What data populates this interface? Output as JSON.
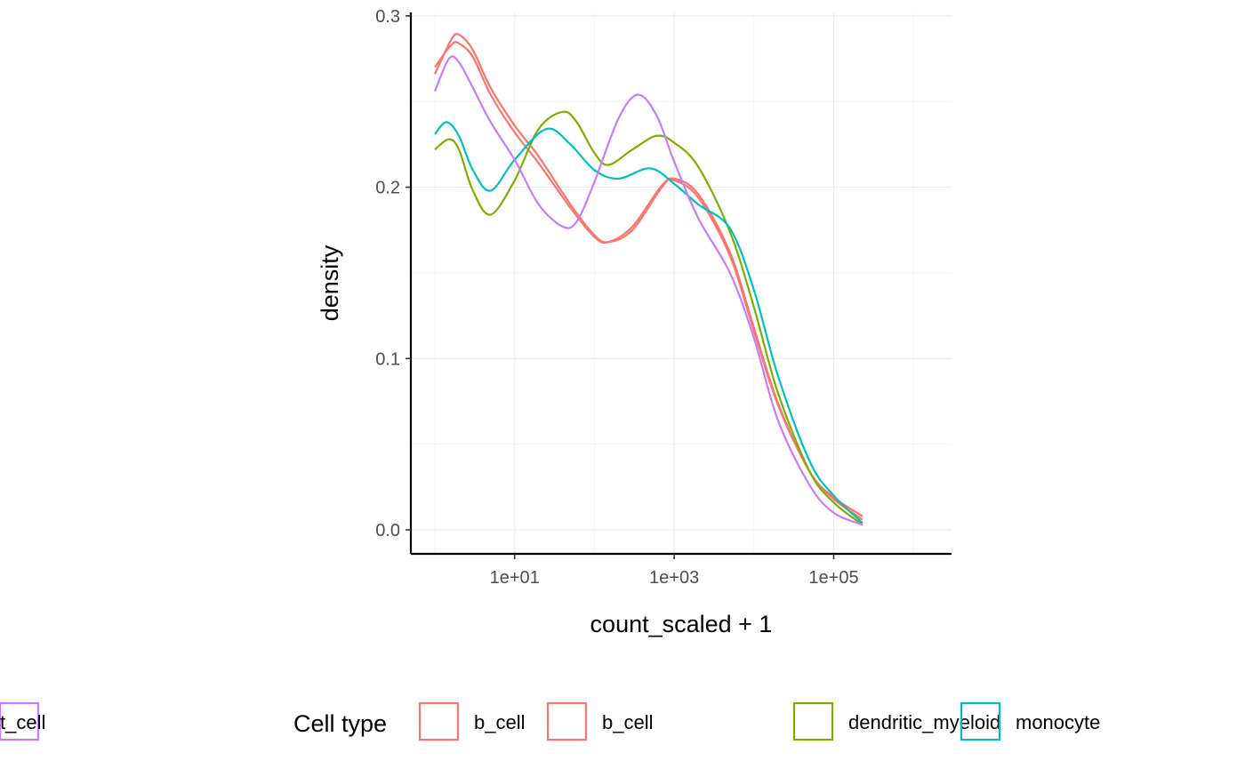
{
  "chart_data": {
    "type": "line",
    "title": "",
    "xlabel": "count_scaled + 1",
    "ylabel": "density",
    "x_scale": "log10",
    "xlim": [
      0.5,
      3000000
    ],
    "ylim": [
      -0.014,
      0.302
    ],
    "x_ticks": [
      {
        "value": 10,
        "label": "1e+01"
      },
      {
        "value": 1000,
        "label": "1e+03"
      },
      {
        "value": 100000,
        "label": "1e+05"
      }
    ],
    "y_ticks": [
      {
        "value": 0.0,
        "label": "0.0"
      },
      {
        "value": 0.1,
        "label": "0.1"
      },
      {
        "value": 0.2,
        "label": "0.2"
      },
      {
        "value": 0.3,
        "label": "0.3"
      }
    ],
    "grid": true,
    "legend": {
      "title": "Cell type",
      "position": "bottom"
    },
    "series": [
      {
        "name": "b_cell",
        "color": "#F8766D",
        "x": [
          1,
          1.6,
          2,
          3,
          5,
          10,
          20,
          50,
          100,
          150,
          300,
          700,
          1000,
          2000,
          5000,
          10000,
          20000,
          50000,
          100000,
          230000
        ],
        "y": [
          0.266,
          0.286,
          0.289,
          0.28,
          0.258,
          0.236,
          0.218,
          0.19,
          0.172,
          0.168,
          0.175,
          0.2,
          0.205,
          0.196,
          0.162,
          0.118,
          0.074,
          0.034,
          0.018,
          0.006
        ]
      },
      {
        "name": "b_cell",
        "color": "#F8766D",
        "x": [
          1,
          1.6,
          2,
          3,
          5,
          10,
          20,
          50,
          100,
          150,
          300,
          700,
          1000,
          2000,
          5000,
          10000,
          20000,
          50000,
          100000,
          230000
        ],
        "y": [
          0.27,
          0.283,
          0.284,
          0.276,
          0.254,
          0.232,
          0.214,
          0.188,
          0.171,
          0.168,
          0.177,
          0.201,
          0.204,
          0.194,
          0.16,
          0.116,
          0.073,
          0.034,
          0.019,
          0.008
        ]
      },
      {
        "name": "dendritic_myeloid",
        "color": "#7CAE00",
        "x": [
          1,
          1.5,
          2,
          3,
          5,
          10,
          20,
          40,
          60,
          100,
          150,
          300,
          600,
          1000,
          2000,
          5000,
          10000,
          20000,
          50000,
          100000,
          230000
        ],
        "y": [
          0.222,
          0.228,
          0.222,
          0.198,
          0.184,
          0.204,
          0.234,
          0.244,
          0.238,
          0.22,
          0.213,
          0.222,
          0.23,
          0.226,
          0.212,
          0.174,
          0.13,
          0.08,
          0.034,
          0.016,
          0.003
        ]
      },
      {
        "name": "monocyte",
        "color": "#00BFC4",
        "x": [
          1,
          1.4,
          2,
          3,
          5,
          10,
          25,
          50,
          100,
          200,
          500,
          1000,
          2000,
          5000,
          10000,
          20000,
          50000,
          100000,
          230000
        ],
        "y": [
          0.231,
          0.238,
          0.23,
          0.21,
          0.198,
          0.216,
          0.234,
          0.225,
          0.21,
          0.205,
          0.211,
          0.202,
          0.19,
          0.176,
          0.14,
          0.09,
          0.04,
          0.02,
          0.004
        ]
      },
      {
        "name": "t_cell",
        "color": "#C77CFF",
        "x": [
          1,
          1.5,
          2,
          3,
          5,
          10,
          20,
          40,
          60,
          100,
          200,
          350,
          600,
          1000,
          2000,
          5000,
          10000,
          20000,
          50000,
          100000,
          230000
        ],
        "y": [
          0.256,
          0.275,
          0.273,
          0.258,
          0.238,
          0.216,
          0.19,
          0.177,
          0.18,
          0.203,
          0.24,
          0.254,
          0.242,
          0.215,
          0.182,
          0.15,
          0.112,
          0.064,
          0.026,
          0.01,
          0.003
        ]
      }
    ]
  }
}
